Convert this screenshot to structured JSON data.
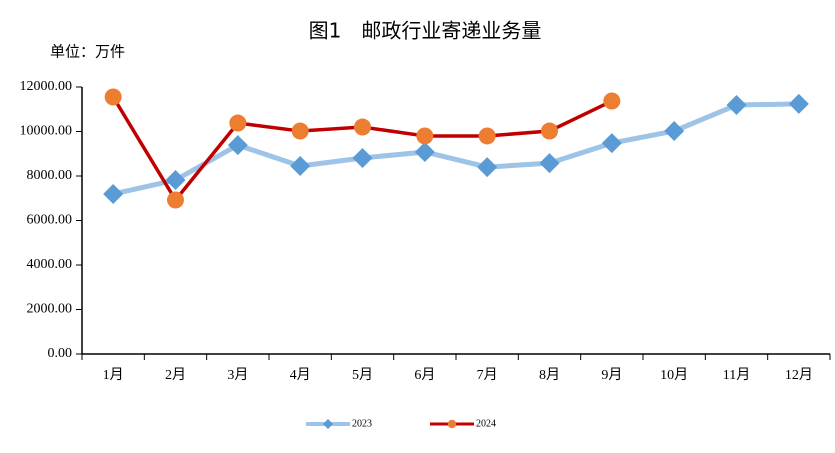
{
  "chart_data": {
    "type": "line",
    "title": "图1　邮政行业寄递业务量",
    "y_label": "单位：万件",
    "categories": [
      "1月",
      "2月",
      "3月",
      "4月",
      "5月",
      "6月",
      "7月",
      "8月",
      "9月",
      "10月",
      "11月",
      "12月"
    ],
    "series": [
      {
        "name": "2023",
        "color": "#9dc3e6",
        "marker_color": "#5b9bd5",
        "marker": "diamond",
        "values": [
          7190,
          7820,
          9390,
          8450,
          8810,
          9080,
          8400,
          8580,
          9480,
          10020,
          11190,
          11240
        ]
      },
      {
        "name": "2024",
        "color": "#c00000",
        "marker_color": "#ed7d31",
        "marker": "circle",
        "values": [
          11550,
          6920,
          10380,
          10020,
          10200,
          9800,
          9800,
          10020,
          11370,
          null,
          null,
          null
        ]
      }
    ],
    "ylim": [
      0,
      12000
    ],
    "yticks": [
      {
        "value": 0,
        "label": "0.00"
      },
      {
        "value": 2000,
        "label": "2000.00"
      },
      {
        "value": 4000,
        "label": "4000.00"
      },
      {
        "value": 6000,
        "label": "6000.00"
      },
      {
        "value": 8000,
        "label": "8000.00"
      },
      {
        "value": 10000,
        "label": "10000.00"
      },
      {
        "value": 12000,
        "label": "12000.00"
      }
    ],
    "grid": false,
    "legend": "bottom"
  }
}
